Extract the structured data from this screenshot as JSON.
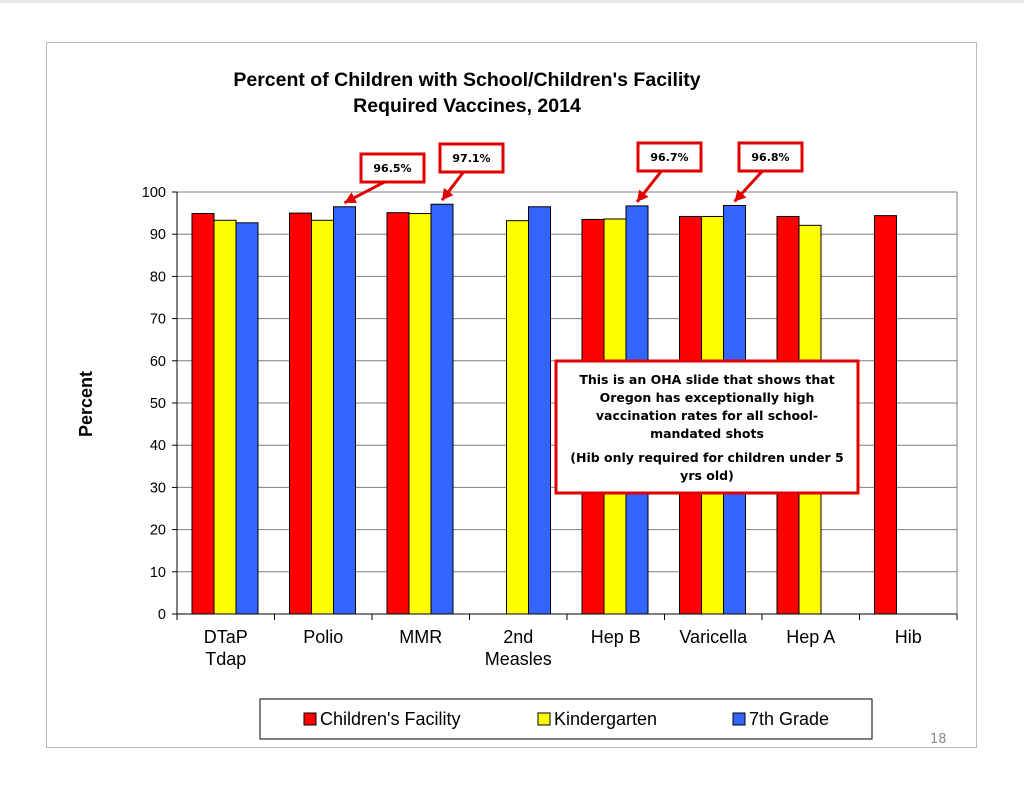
{
  "page": {
    "page_number": "18"
  },
  "colors": {
    "childrens_facility": "#ff0000",
    "kindergarten": "#ffff00",
    "seventh_grade": "#3366ff",
    "callout_border": "#e00000"
  },
  "chart_data": {
    "type": "bar",
    "title": [
      "Percent of Children with School/Children's Facility",
      "Required Vaccines, 2014"
    ],
    "xlabel": "",
    "ylabel": "Percent",
    "ylim": [
      0,
      100
    ],
    "yticks": [
      0,
      10,
      20,
      30,
      40,
      50,
      60,
      70,
      80,
      90,
      100
    ],
    "grid": "horizontal",
    "legend_position": "bottom",
    "categories": [
      "DTaP Tdap",
      "Polio",
      "MMR",
      "2nd Measles",
      "Hep B",
      "Varicella",
      "Hep A",
      "Hib"
    ],
    "category_lines": [
      [
        "DTaP",
        "Tdap"
      ],
      [
        "Polio"
      ],
      [
        "MMR"
      ],
      [
        "2nd",
        "Measles"
      ],
      [
        "Hep B"
      ],
      [
        "Varicella"
      ],
      [
        "Hep A"
      ],
      [
        "Hib"
      ]
    ],
    "series": [
      {
        "name": "Children's Facility",
        "color": "#ff0000",
        "values": [
          94.9,
          95.0,
          95.1,
          null,
          93.5,
          94.2,
          94.2,
          94.4
        ]
      },
      {
        "name": "Kindergarten",
        "color": "#ffff00",
        "values": [
          93.3,
          93.3,
          94.9,
          93.2,
          93.6,
          94.2,
          92.1,
          null
        ]
      },
      {
        "name": "7th Grade",
        "color": "#3366ff",
        "values": [
          92.7,
          96.5,
          97.1,
          96.5,
          96.7,
          96.8,
          null,
          null
        ]
      }
    ],
    "callouts": [
      {
        "text": "96.5%",
        "category_index": 1
      },
      {
        "text": "97.1%",
        "category_index": 2
      },
      {
        "text": "96.7%",
        "category_index": 4
      },
      {
        "text": "96.8%",
        "category_index": 5
      }
    ],
    "note": [
      "This is an OHA slide that shows that",
      "Oregon has exceptionally high",
      "vaccination rates for all school-",
      "mandated shots",
      "(Hib only required for children under 5",
      "yrs old)"
    ]
  }
}
